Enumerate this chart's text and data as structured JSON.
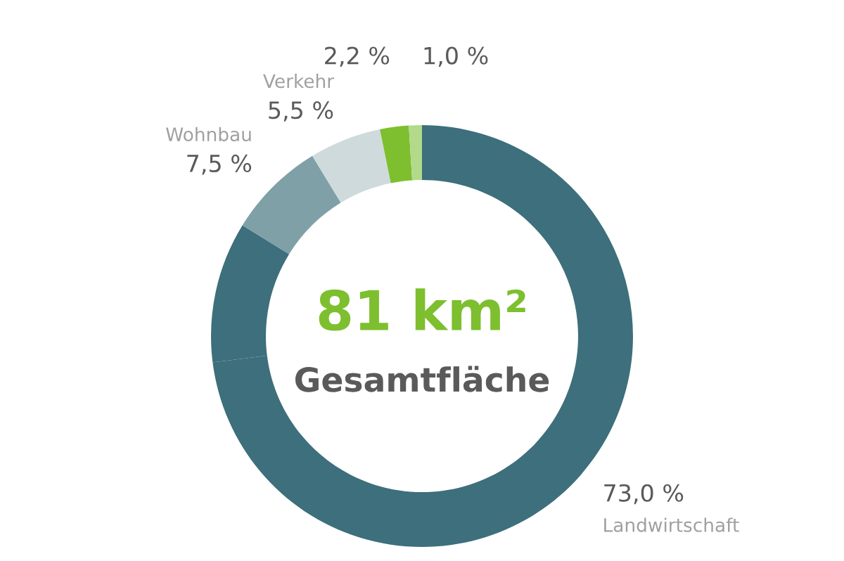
{
  "chart_data": {
    "type": "donut",
    "title": "81 km²",
    "subtitle": "Gesamtfläche",
    "categories": [
      "Landwirtschaft",
      null,
      "Wohnbau",
      "Verkehr",
      null,
      null
    ],
    "values": [
      73.0,
      10.8,
      7.5,
      5.5,
      2.2,
      1.0
    ],
    "colors": [
      "#3d6f7c",
      "#3d6f7c",
      "#7fa0a6",
      "#cfdadd",
      "#7dbf2e",
      "#b3d98a"
    ],
    "value_labels": [
      "73,0 %",
      null,
      "7,5 %",
      "5,5 %",
      "2,2 %",
      "1,0 %"
    ]
  }
}
